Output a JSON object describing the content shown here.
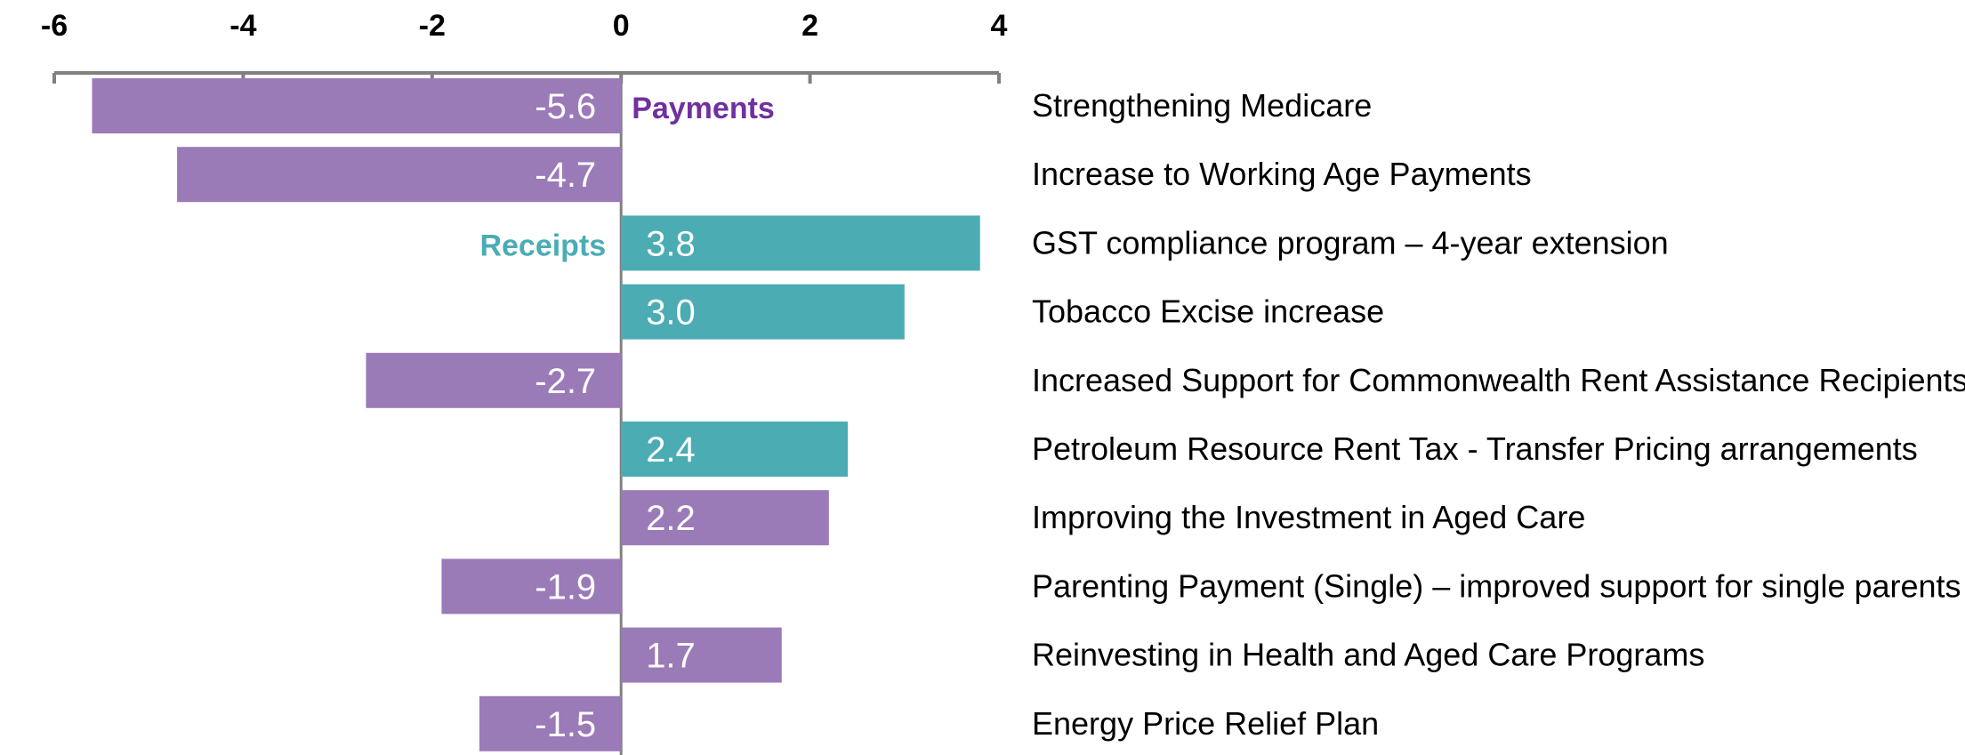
{
  "chart_data": {
    "type": "bar",
    "orientation": "horizontal",
    "title": "",
    "xlabel": "",
    "ylabel": "",
    "xlim": [
      -6,
      4
    ],
    "xticks": [
      -6,
      -4,
      -2,
      0,
      2,
      4
    ],
    "grid": false,
    "colors": {
      "payments": "#9b7ab8",
      "receipts": "#4bacb4",
      "payments_text": "#7030a0",
      "receipts_text": "#4bacb4",
      "axis": "#808080"
    },
    "legend": [
      {
        "name": "Payments",
        "series": "payments",
        "placement": "right of zero line, first row"
      },
      {
        "name": "Receipts",
        "series": "receipts",
        "placement": "left of zero line, third row"
      }
    ],
    "categories": [
      "Strengthening Medicare",
      "Increase to Working Age Payments",
      "GST compliance program – 4-year extension",
      "Tobacco Excise increase",
      "Increased Support for Commonwealth Rent Assistance Recipients",
      "Petroleum Resource Rent Tax - Transfer Pricing arrangements",
      "Improving the Investment in Aged Care",
      "Parenting Payment (Single) – improved support for single parents",
      "Reinvesting in Health and Aged Care Programs",
      "Energy Price Relief Plan"
    ],
    "values": [
      -5.6,
      -4.7,
      3.8,
      3.0,
      -2.7,
      2.4,
      2.2,
      -1.9,
      1.7,
      -1.5
    ],
    "value_labels": [
      "-5.6",
      "-4.7",
      "3.8",
      "3.0",
      "-2.7",
      "2.4",
      "2.2",
      "-1.9",
      "1.7",
      "-1.5"
    ],
    "series_type": [
      "payments",
      "payments",
      "receipts",
      "receipts",
      "payments",
      "receipts",
      "payments",
      "payments",
      "payments",
      "payments"
    ]
  }
}
